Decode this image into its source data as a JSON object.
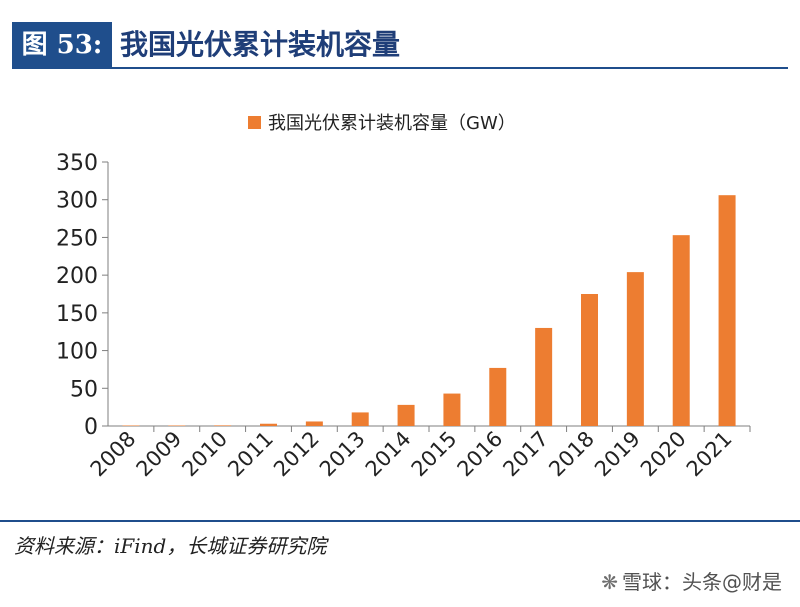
{
  "header": {
    "figure_label": "图 53:",
    "title": "我国光伏累计装机容量"
  },
  "colors": {
    "bar": "#ED7D31",
    "header_blue": "#1F4E8C",
    "axis": "#7f7f7f",
    "text": "#222222"
  },
  "chart_data": {
    "type": "bar",
    "legend": "我国光伏累计装机容量（GW）",
    "legend_position": "top",
    "categories": [
      "2008",
      "2009",
      "2010",
      "2011",
      "2012",
      "2013",
      "2014",
      "2015",
      "2016",
      "2017",
      "2018",
      "2019",
      "2020",
      "2021"
    ],
    "series": [
      {
        "name": "我国光伏累计装机容量（GW）",
        "values": [
          0.1,
          0.3,
          0.8,
          3,
          6,
          18,
          28,
          43,
          77,
          130,
          175,
          204,
          253,
          306
        ]
      }
    ],
    "ylim": [
      0,
      350
    ],
    "yticks": [
      "0",
      "50",
      "100",
      "150",
      "200",
      "250",
      "300",
      "350"
    ],
    "grid": false
  },
  "footer": {
    "source": "资料来源：iFind，长城证券研究院",
    "watermark": "雪球：头条@财是"
  }
}
